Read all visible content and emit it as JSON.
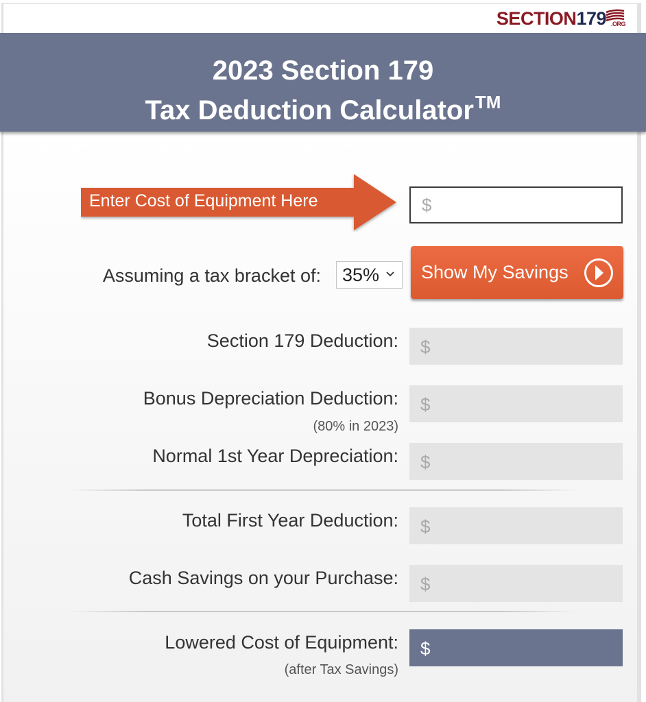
{
  "logo": {
    "section": "SECTION",
    "number": "179",
    "org": ".ORG"
  },
  "header": {
    "title_line1": "2023 Section 179",
    "title_line2": "Tax Deduction Calculator",
    "trademark": "TM",
    "background": "#6b748e"
  },
  "cost_input": {
    "label": "Enter Cost of Equipment Here",
    "placeholder": "$",
    "value": "",
    "arrow_color": "#d95a30"
  },
  "bracket": {
    "label": "Assuming a tax bracket of:",
    "selected": "35%"
  },
  "savings_button": {
    "label": "Show My Savings",
    "icon": "chevron-right-circle-icon",
    "color": "#e4623a"
  },
  "results": {
    "section179": {
      "label": "Section 179 Deduction:",
      "value": "$"
    },
    "bonus": {
      "label": "Bonus Depreciation Deduction:",
      "note": "(80% in 2023)",
      "value": "$"
    },
    "normal": {
      "label": "Normal 1st Year Depreciation:",
      "value": "$"
    },
    "total": {
      "label": "Total First Year Deduction:",
      "value": "$"
    },
    "cash": {
      "label": "Cash Savings on your Purchase:",
      "value": "$"
    },
    "lowered": {
      "label": "Lowered Cost of Equipment:",
      "note": "(after Tax Savings)",
      "value": "$"
    }
  }
}
